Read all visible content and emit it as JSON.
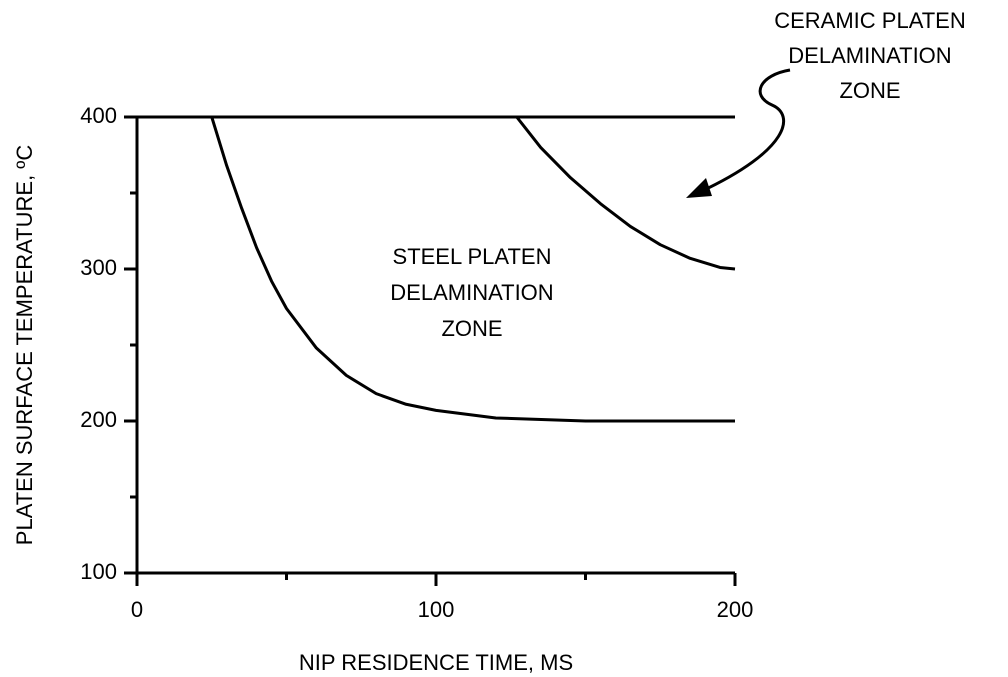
{
  "chart_data": {
    "type": "line",
    "xlabel": "NIP RESIDENCE TIME, MS",
    "ylabel": "PLATEN SURFACE TEMPERATURE, ºC",
    "xlim": [
      0,
      200
    ],
    "xticks": [
      0,
      100,
      200
    ],
    "xminor_ticks": [
      50,
      150
    ],
    "ylim": [
      100,
      400
    ],
    "yticks": [
      100,
      200,
      300,
      400
    ],
    "yminor_ticks": [
      150,
      250,
      350
    ],
    "series": [
      {
        "color": "#000000",
        "x": [
          25,
          30,
          35,
          40,
          45,
          50,
          60,
          70,
          80,
          90,
          100,
          120,
          150,
          200
        ],
        "values": [
          400,
          368,
          340,
          314,
          292,
          274,
          248,
          230,
          218,
          211,
          207,
          202,
          200,
          200
        ]
      },
      {
        "color": "#000000",
        "x": [
          127,
          135,
          145,
          155,
          165,
          175,
          185,
          195,
          200
        ],
        "values": [
          400,
          380,
          360,
          343,
          328,
          316,
          307,
          301,
          300
        ]
      }
    ],
    "annotations": [
      [
        "STEEL PLATEN",
        "DELAMINATION",
        "ZONE"
      ],
      [
        "CERAMIC PLATEN",
        "DELAMINATION",
        "ZONE"
      ]
    ]
  }
}
